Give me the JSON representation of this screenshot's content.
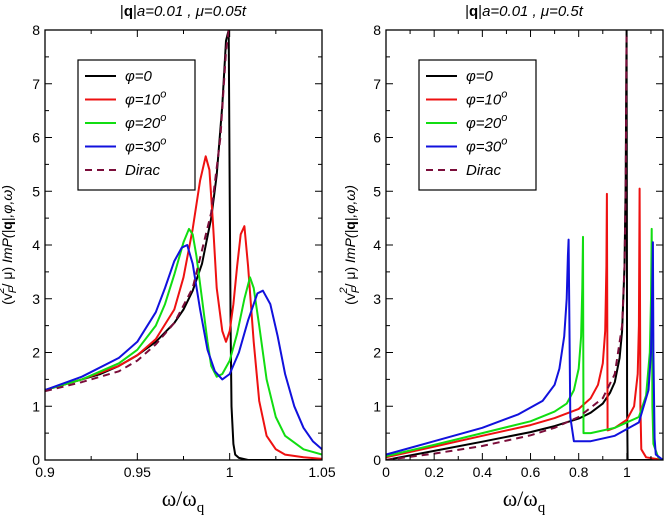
{
  "chart_data": [
    {
      "type": "line",
      "title": "|q|a=0.01 , μ=0.05t",
      "title_parts": {
        "q": "q",
        "a_value": "a=0.01 , ",
        "mu": "μ=0.05t"
      },
      "xlabel": "ω/ω_q",
      "xlabel_parts": {
        "main": "ω/ω",
        "sub": "q"
      },
      "ylabel": "(v_F^2/μ) ImP(|q|,φ,ω)",
      "ylabel_parts": {
        "pre": "(v",
        "sub": "F",
        "sup": "2",
        "mid": "/ μ) ",
        "imp": "ImP(",
        "q": "q",
        "post": "|,φ,ω)",
        "bar": "|"
      },
      "xlim": [
        0.9,
        1.05
      ],
      "ylim": [
        0,
        8
      ],
      "xticks": [
        "0.9",
        "0.95",
        "1",
        "1.05"
      ],
      "xtick_values": [
        0.9,
        0.95,
        1.0,
        1.05
      ],
      "yticks": [
        "0",
        "1",
        "2",
        "3",
        "4",
        "5",
        "6",
        "7",
        "8"
      ],
      "ytick_values": [
        0,
        1,
        2,
        3,
        4,
        5,
        6,
        7,
        8
      ],
      "grid": false,
      "legend_position": "top-left",
      "series": [
        {
          "name": "φ=0",
          "label": "φ=0",
          "color": "#000000",
          "dash": false,
          "x": [
            0.9,
            0.91,
            0.92,
            0.93,
            0.94,
            0.95,
            0.96,
            0.97,
            0.975,
            0.98,
            0.985,
            0.99,
            0.993,
            0.996,
            0.998,
            0.9995,
            1.0,
            1.0005,
            1.001,
            1.002,
            1.003,
            1.005,
            1.01,
            1.05
          ],
          "y": [
            1.3,
            1.4,
            1.5,
            1.6,
            1.75,
            1.95,
            2.2,
            2.55,
            2.8,
            3.15,
            3.65,
            4.5,
            5.3,
            6.6,
            7.8,
            8.0,
            5.0,
            2.5,
            1.0,
            0.3,
            0.1,
            0.04,
            0.0,
            0.0
          ]
        },
        {
          "name": "φ=10°",
          "label": "φ=10",
          "sup": "o",
          "color": "#ee1111",
          "dash": false,
          "x": [
            0.9,
            0.92,
            0.94,
            0.95,
            0.96,
            0.97,
            0.975,
            0.98,
            0.984,
            0.987,
            0.989,
            0.991,
            0.993,
            0.996,
            0.998,
            1.0,
            1.002,
            1.004,
            1.006,
            1.008,
            1.01,
            1.013,
            1.016,
            1.02,
            1.025,
            1.03,
            1.04,
            1.05
          ],
          "y": [
            1.3,
            1.5,
            1.75,
            1.95,
            2.25,
            2.8,
            3.4,
            4.3,
            5.2,
            5.65,
            5.4,
            4.4,
            3.2,
            2.4,
            2.2,
            2.4,
            2.9,
            3.6,
            4.2,
            4.35,
            3.6,
            2.2,
            1.1,
            0.45,
            0.2,
            0.1,
            0.05,
            0.02
          ]
        },
        {
          "name": "φ=20°",
          "label": "φ=20",
          "sup": "o",
          "color": "#11dd11",
          "dash": false,
          "x": [
            0.9,
            0.92,
            0.94,
            0.95,
            0.96,
            0.965,
            0.97,
            0.975,
            0.978,
            0.98,
            0.982,
            0.985,
            0.988,
            0.99,
            0.993,
            0.996,
            1.0,
            1.004,
            1.008,
            1.011,
            1.013,
            1.016,
            1.02,
            1.025,
            1.03,
            1.04,
            1.05
          ],
          "y": [
            1.3,
            1.5,
            1.8,
            2.05,
            2.5,
            2.9,
            3.45,
            4.05,
            4.3,
            4.2,
            3.8,
            3.0,
            2.2,
            1.75,
            1.55,
            1.6,
            1.85,
            2.35,
            3.0,
            3.4,
            3.2,
            2.5,
            1.5,
            0.8,
            0.45,
            0.2,
            0.1
          ]
        },
        {
          "name": "φ=30°",
          "label": "φ=30",
          "sup": "o",
          "color": "#1111dd",
          "dash": false,
          "x": [
            0.9,
            0.92,
            0.94,
            0.95,
            0.96,
            0.965,
            0.97,
            0.974,
            0.977,
            0.98,
            0.984,
            0.988,
            0.992,
            0.996,
            1.0,
            1.005,
            1.01,
            1.015,
            1.018,
            1.022,
            1.026,
            1.03,
            1.035,
            1.04,
            1.045,
            1.05
          ],
          "y": [
            1.3,
            1.55,
            1.9,
            2.2,
            2.75,
            3.2,
            3.7,
            3.95,
            4.0,
            3.65,
            2.8,
            2.05,
            1.65,
            1.5,
            1.6,
            2.0,
            2.6,
            3.1,
            3.15,
            2.9,
            2.3,
            1.6,
            1.0,
            0.6,
            0.35,
            0.2
          ]
        },
        {
          "name": "Dirac",
          "label": "Dirac",
          "color": "#7b0d3a",
          "dash": true,
          "x": [
            0.9,
            0.92,
            0.94,
            0.95,
            0.96,
            0.97,
            0.98,
            0.99,
            0.995,
            0.998,
            0.9995,
            1.0
          ],
          "y": [
            1.28,
            1.45,
            1.65,
            1.85,
            2.15,
            2.55,
            3.2,
            4.6,
            6.0,
            7.6,
            8.0,
            8.0
          ]
        }
      ]
    },
    {
      "type": "line",
      "title": "|q|a=0.01 , μ=0.5t",
      "title_parts": {
        "q": "q",
        "a_value": "a=0.01 , ",
        "mu": "μ=0.5t"
      },
      "xlabel": "ω/ω_q",
      "xlabel_parts": {
        "main": "ω/ω",
        "sub": "q"
      },
      "ylabel": "(v_F^2/μ) ImP(|q|,φ,ω)",
      "ylabel_parts": {
        "pre": "(v",
        "sub": "F",
        "sup": "2",
        "mid": "/ μ) ",
        "imp": "ImP(",
        "q": "q",
        "post": "|,φ,ω)",
        "bar": "|"
      },
      "xlim": [
        0,
        1.15
      ],
      "ylim": [
        0,
        8
      ],
      "xticks": [
        "0",
        "0.2",
        "0.4",
        "0.6",
        "0.8",
        "1"
      ],
      "xtick_values": [
        0,
        0.2,
        0.4,
        0.6,
        0.8,
        1.0
      ],
      "yticks": [
        "0",
        "1",
        "2",
        "3",
        "4",
        "5",
        "6",
        "7",
        "8"
      ],
      "ytick_values": [
        0,
        1,
        2,
        3,
        4,
        5,
        6,
        7,
        8
      ],
      "grid": false,
      "legend_position": "top-left",
      "series": [
        {
          "name": "φ=0",
          "label": "φ=0",
          "color": "#000000",
          "dash": false,
          "x": [
            0,
            0.2,
            0.4,
            0.6,
            0.7,
            0.8,
            0.85,
            0.9,
            0.93,
            0.95,
            0.97,
            0.98,
            0.99,
            0.995,
            0.998,
            0.999,
            1.0,
            1.001,
            1.003,
            1.15
          ],
          "y": [
            0,
            0.17,
            0.34,
            0.52,
            0.63,
            0.77,
            0.88,
            1.05,
            1.25,
            1.45,
            1.9,
            2.4,
            3.6,
            5.2,
            7.5,
            8.0,
            4.0,
            1.0,
            0.0,
            0.0
          ]
        },
        {
          "name": "φ=10°",
          "label": "φ=10",
          "sup": "o",
          "color": "#ee1111",
          "dash": false,
          "x": [
            0,
            0.2,
            0.4,
            0.6,
            0.7,
            0.8,
            0.85,
            0.88,
            0.9,
            0.91,
            0.915,
            0.917,
            0.92,
            0.95,
            1.0,
            1.03,
            1.045,
            1.05,
            1.053,
            1.056,
            1.06,
            1.08,
            1.15
          ],
          "y": [
            0.05,
            0.25,
            0.45,
            0.65,
            0.78,
            0.95,
            1.15,
            1.4,
            1.8,
            2.4,
            3.6,
            4.95,
            0.55,
            0.6,
            0.75,
            1.0,
            1.6,
            2.5,
            5.05,
            1.0,
            0.2,
            0.05,
            0.0
          ]
        },
        {
          "name": "φ=20°",
          "label": "φ=20",
          "sup": "o",
          "color": "#11dd11",
          "dash": false,
          "x": [
            0,
            0.2,
            0.4,
            0.6,
            0.7,
            0.75,
            0.78,
            0.8,
            0.81,
            0.815,
            0.818,
            0.82,
            0.85,
            0.95,
            1.05,
            1.08,
            1.095,
            1.1,
            1.103,
            1.106,
            1.11,
            1.13,
            1.15
          ],
          "y": [
            0.07,
            0.28,
            0.5,
            0.72,
            0.9,
            1.05,
            1.3,
            1.7,
            2.3,
            3.2,
            4.15,
            0.5,
            0.5,
            0.6,
            0.8,
            1.2,
            2.0,
            3.0,
            4.3,
            1.0,
            0.3,
            0.05,
            0.0
          ]
        },
        {
          "name": "φ=30°",
          "label": "φ=30",
          "sup": "o",
          "color": "#1111dd",
          "dash": false,
          "x": [
            0,
            0.2,
            0.4,
            0.55,
            0.65,
            0.7,
            0.72,
            0.74,
            0.75,
            0.755,
            0.758,
            0.765,
            0.78,
            0.85,
            0.95,
            1.05,
            1.09,
            1.1,
            1.105,
            1.108,
            1.11,
            1.115,
            1.12,
            1.15
          ],
          "y": [
            0.1,
            0.35,
            0.6,
            0.85,
            1.1,
            1.4,
            1.7,
            2.3,
            3.0,
            3.8,
            4.1,
            0.8,
            0.35,
            0.35,
            0.45,
            0.7,
            1.3,
            2.0,
            3.2,
            4.05,
            2.0,
            0.4,
            0.1,
            0.0
          ]
        },
        {
          "name": "Dirac",
          "label": "Dirac",
          "color": "#7b0d3a",
          "dash": true,
          "x": [
            0,
            0.2,
            0.4,
            0.6,
            0.7,
            0.8,
            0.9,
            0.95,
            0.98,
            0.99,
            0.995,
            0.998,
            0.999
          ],
          "y": [
            0,
            0.12,
            0.26,
            0.46,
            0.6,
            0.8,
            1.15,
            1.6,
            2.5,
            3.6,
            5.0,
            7.3,
            8.0
          ]
        }
      ]
    }
  ]
}
